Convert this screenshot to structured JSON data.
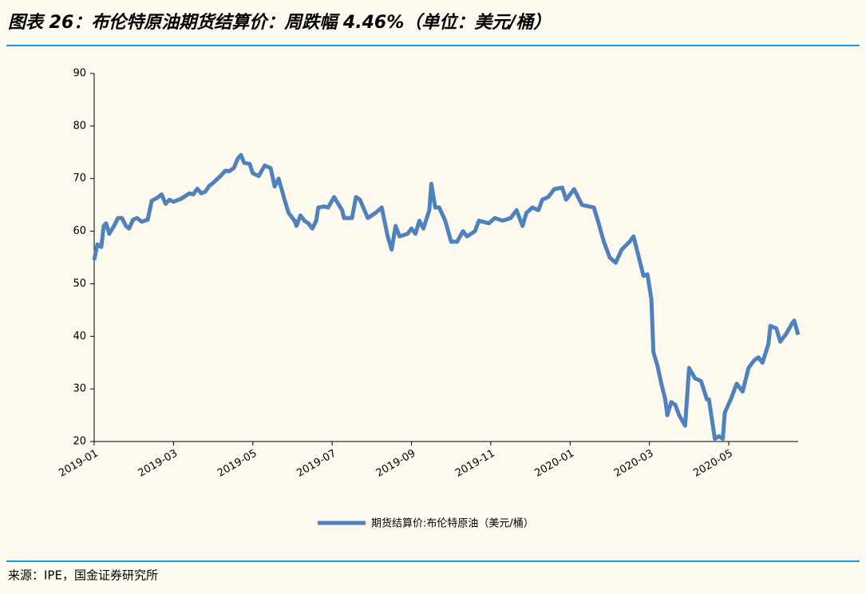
{
  "chart_data": {
    "type": "line",
    "title": "图表 26：布伦特原油期货结算价：周跌幅 4.46%（单位：美元/桶）",
    "source": "来源：IPE，国金证券研究所",
    "x": [
      0,
      0.08,
      0.18,
      0.24,
      0.3,
      0.38,
      0.5,
      0.6,
      0.7,
      0.8,
      0.88,
      0.98,
      1.08,
      1.2,
      1.35,
      1.45,
      1.6,
      1.7,
      1.8,
      1.9,
      2.0,
      2.2,
      2.4,
      2.5,
      2.6,
      2.7,
      2.8,
      2.9,
      3.0,
      3.2,
      3.3,
      3.4,
      3.52,
      3.62,
      3.7,
      3.78,
      3.92,
      4.0,
      4.15,
      4.3,
      4.45,
      4.55,
      4.65,
      4.8,
      4.9,
      5.05,
      5.1,
      5.2,
      5.3,
      5.4,
      5.5,
      5.6,
      5.65,
      5.8,
      5.9,
      6.05,
      6.25,
      6.3,
      6.5,
      6.6,
      6.7,
      6.9,
      7.1,
      7.25,
      7.4,
      7.5,
      7.6,
      7.7,
      7.9,
      8.0,
      8.1,
      8.2,
      8.3,
      8.45,
      8.5,
      8.6,
      8.7,
      8.85,
      9.0,
      9.15,
      9.3,
      9.4,
      9.6,
      9.7,
      9.95,
      10.1,
      10.3,
      10.5,
      10.65,
      10.8,
      10.9,
      11.05,
      11.2,
      11.3,
      11.45,
      11.6,
      11.8,
      11.9,
      12.1,
      12.3,
      12.6,
      12.7,
      12.85,
      13.0,
      13.15,
      13.3,
      13.5,
      13.6,
      13.7,
      13.85,
      13.95,
      14.05,
      14.1,
      14.2,
      14.3,
      14.4,
      14.45,
      14.55,
      14.65,
      14.75,
      14.9,
      15.0,
      15.15,
      15.3,
      15.45,
      15.5,
      15.65,
      15.75,
      15.85,
      15.9,
      16.05,
      16.2,
      16.35,
      16.5,
      16.65,
      16.75,
      16.85,
      17.0,
      17.05,
      17.2,
      17.3,
      17.45,
      17.6,
      17.65,
      17.75
    ],
    "series": [
      {
        "name": "期货结算价:布伦特原油（美元/桶）",
        "color": "#4f81bd",
        "values": [
          54.5,
          57.5,
          57,
          61,
          61.5,
          59.5,
          61,
          62.5,
          62.5,
          61,
          60.5,
          62.2,
          62.5,
          61.8,
          62.2,
          65.8,
          66.4,
          67,
          65.2,
          66,
          65.6,
          66.2,
          67.2,
          67,
          68.1,
          67.2,
          67.5,
          68.6,
          69.2,
          70.6,
          71.5,
          71.4,
          72,
          73.8,
          74.5,
          73,
          72.8,
          71,
          70.5,
          72.5,
          72,
          68.5,
          70,
          66,
          63.5,
          62,
          61,
          63,
          62,
          61.5,
          60.5,
          62,
          64.5,
          64.7,
          64.5,
          66.5,
          64,
          62.5,
          62.5,
          66.5,
          66,
          62.5,
          63.5,
          64.5,
          59,
          56.5,
          61,
          59,
          59.5,
          60.5,
          59.5,
          62,
          60.5,
          64,
          69,
          64.5,
          64.5,
          62,
          58,
          58,
          60,
          59,
          60,
          62,
          61.5,
          62.5,
          62,
          62.5,
          64,
          61,
          63.5,
          64.5,
          64,
          66,
          66.5,
          68,
          68.3,
          66,
          68,
          65,
          64.5,
          62,
          58,
          55,
          54,
          56.5,
          58,
          59,
          56,
          51.5,
          51.8,
          47,
          37,
          34.5,
          31,
          28,
          25,
          27.5,
          27,
          25,
          23,
          34,
          32,
          31.5,
          28,
          28,
          20.5,
          21,
          20.5,
          25.5,
          28,
          31,
          29.5,
          34,
          35.5,
          36,
          35,
          38.5,
          42,
          41.5,
          39,
          40.5,
          42.5,
          43,
          40.3
        ]
      }
    ],
    "xlim": [
      0,
      17.75
    ],
    "xticks": [
      {
        "value": 0,
        "label": "2019-01"
      },
      {
        "value": 2,
        "label": "2019-03"
      },
      {
        "value": 4,
        "label": "2019-05"
      },
      {
        "value": 6,
        "label": "2019-07"
      },
      {
        "value": 8,
        "label": "2019-09"
      },
      {
        "value": 10,
        "label": "2019-11"
      },
      {
        "value": 12,
        "label": "2020-01"
      },
      {
        "value": 14,
        "label": "2020-03"
      },
      {
        "value": 16,
        "label": "2020-05"
      }
    ],
    "ylim": [
      20,
      90
    ],
    "yticks": [
      20,
      30,
      40,
      50,
      60,
      70,
      80,
      90
    ],
    "grid": false,
    "legend": "bottom"
  }
}
